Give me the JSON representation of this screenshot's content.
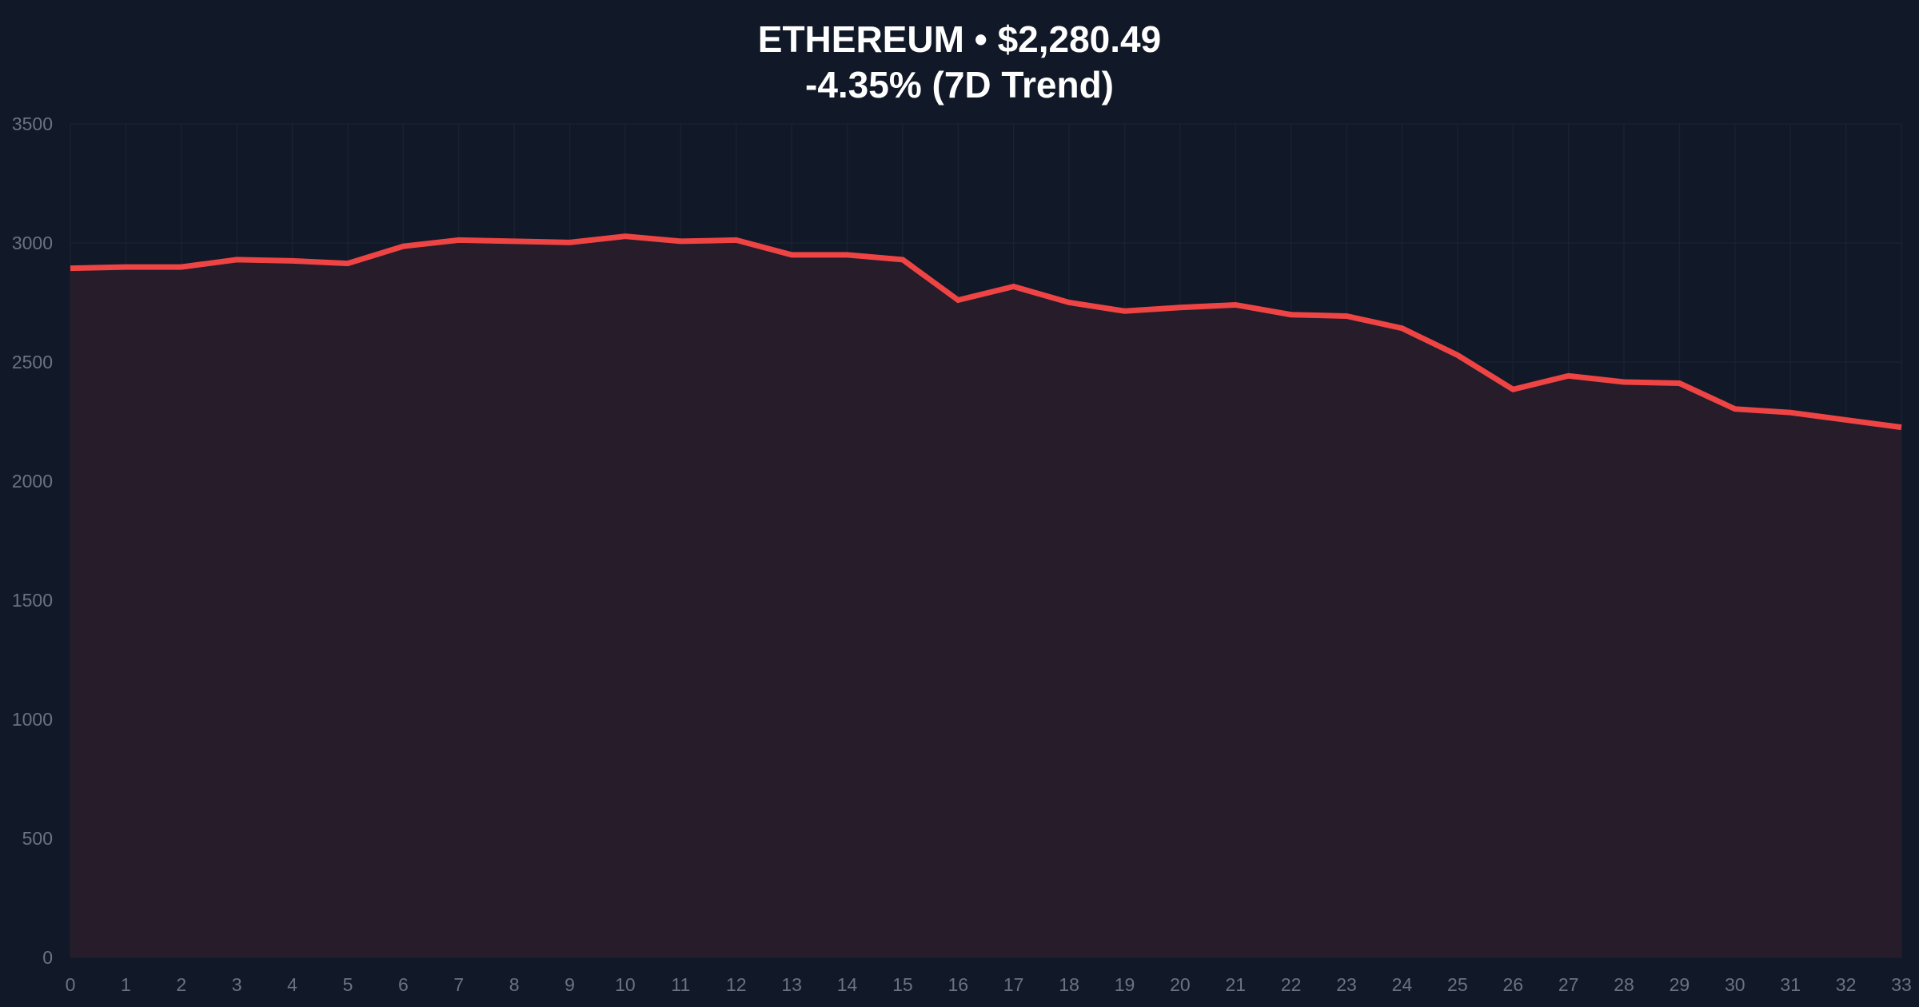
{
  "chart_data": {
    "type": "area",
    "title": "ETHEREUM • $2,280.49",
    "subtitle": "-4.35% (7D Trend)",
    "xlabel": "",
    "ylabel": "",
    "x": [
      0,
      1,
      2,
      3,
      4,
      5,
      6,
      7,
      8,
      9,
      10,
      11,
      12,
      13,
      14,
      15,
      16,
      17,
      18,
      19,
      20,
      21,
      22,
      23,
      24,
      25,
      26,
      27,
      28,
      29,
      30,
      31,
      32,
      33
    ],
    "values": [
      2894,
      2899,
      2899,
      2930,
      2925,
      2914,
      2986,
      3012,
      3007,
      3002,
      3028,
      3007,
      3012,
      2950,
      2950,
      2930,
      2760,
      2817,
      2750,
      2714,
      2729,
      2740,
      2699,
      2693,
      2642,
      2529,
      2385,
      2442,
      2416,
      2411,
      2303,
      2288,
      2257,
      2226
    ],
    "xlim": [
      0,
      33
    ],
    "ylim": [
      0,
      3500
    ],
    "yticks": [
      0,
      500,
      1000,
      1500,
      2000,
      2500,
      3000,
      3500
    ],
    "xticks": [
      0,
      1,
      2,
      3,
      4,
      5,
      6,
      7,
      8,
      9,
      10,
      11,
      12,
      13,
      14,
      15,
      16,
      17,
      18,
      19,
      20,
      21,
      22,
      23,
      24,
      25,
      26,
      27,
      28,
      29,
      30,
      31,
      32,
      33
    ],
    "grid": true,
    "legend": "none",
    "colors": {
      "line": "#ef4444",
      "fill": "#261c2a",
      "background": "#111827",
      "grid": "#1a2130",
      "tick": "#6b7280"
    }
  }
}
